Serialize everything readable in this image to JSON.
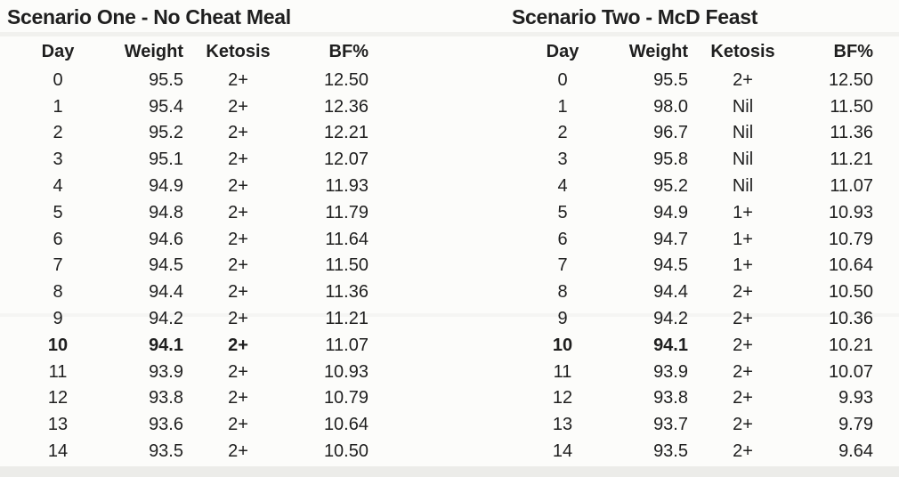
{
  "page": {
    "background_color": "#fcfcfa",
    "text_color": "#1f1f1f"
  },
  "tables": [
    {
      "title": "Scenario One - No Cheat Meal",
      "columns": [
        "Day",
        "Weight",
        "Ketosis",
        "BF%"
      ],
      "rows": [
        {
          "cells": [
            "0",
            "95.5",
            "2+",
            "12.50"
          ],
          "bold": []
        },
        {
          "cells": [
            "1",
            "95.4",
            "2+",
            "12.36"
          ],
          "bold": []
        },
        {
          "cells": [
            "2",
            "95.2",
            "2+",
            "12.21"
          ],
          "bold": []
        },
        {
          "cells": [
            "3",
            "95.1",
            "2+",
            "12.07"
          ],
          "bold": []
        },
        {
          "cells": [
            "4",
            "94.9",
            "2+",
            "11.93"
          ],
          "bold": []
        },
        {
          "cells": [
            "5",
            "94.8",
            "2+",
            "11.79"
          ],
          "bold": []
        },
        {
          "cells": [
            "6",
            "94.6",
            "2+",
            "11.64"
          ],
          "bold": []
        },
        {
          "cells": [
            "7",
            "94.5",
            "2+",
            "11.50"
          ],
          "bold": []
        },
        {
          "cells": [
            "8",
            "94.4",
            "2+",
            "11.36"
          ],
          "bold": []
        },
        {
          "cells": [
            "9",
            "94.2",
            "2+",
            "11.21"
          ],
          "bold": []
        },
        {
          "cells": [
            "10",
            "94.1",
            "2+",
            "11.07"
          ],
          "bold": [
            0,
            1,
            2
          ]
        },
        {
          "cells": [
            "11",
            "93.9",
            "2+",
            "10.93"
          ],
          "bold": []
        },
        {
          "cells": [
            "12",
            "93.8",
            "2+",
            "10.79"
          ],
          "bold": []
        },
        {
          "cells": [
            "13",
            "93.6",
            "2+",
            "10.64"
          ],
          "bold": []
        },
        {
          "cells": [
            "14",
            "93.5",
            "2+",
            "10.50"
          ],
          "bold": []
        }
      ]
    },
    {
      "title": "Scenario Two - McD Feast",
      "columns": [
        "Day",
        "Weight",
        "Ketosis",
        "BF%"
      ],
      "rows": [
        {
          "cells": [
            "0",
            "95.5",
            "2+",
            "12.50"
          ],
          "bold": []
        },
        {
          "cells": [
            "1",
            "98.0",
            "Nil",
            "11.50"
          ],
          "bold": []
        },
        {
          "cells": [
            "2",
            "96.7",
            "Nil",
            "11.36"
          ],
          "bold": []
        },
        {
          "cells": [
            "3",
            "95.8",
            "Nil",
            "11.21"
          ],
          "bold": []
        },
        {
          "cells": [
            "4",
            "95.2",
            "Nil",
            "11.07"
          ],
          "bold": []
        },
        {
          "cells": [
            "5",
            "94.9",
            "1+",
            "10.93"
          ],
          "bold": []
        },
        {
          "cells": [
            "6",
            "94.7",
            "1+",
            "10.79"
          ],
          "bold": []
        },
        {
          "cells": [
            "7",
            "94.5",
            "1+",
            "10.64"
          ],
          "bold": []
        },
        {
          "cells": [
            "8",
            "94.4",
            "2+",
            "10.50"
          ],
          "bold": []
        },
        {
          "cells": [
            "9",
            "94.2",
            "2+",
            "10.36"
          ],
          "bold": []
        },
        {
          "cells": [
            "10",
            "94.1",
            "2+",
            "10.21"
          ],
          "bold": [
            0,
            1
          ]
        },
        {
          "cells": [
            "11",
            "93.9",
            "2+",
            "10.07"
          ],
          "bold": []
        },
        {
          "cells": [
            "12",
            "93.8",
            "2+",
            "9.93"
          ],
          "bold": []
        },
        {
          "cells": [
            "13",
            "93.7",
            "2+",
            "9.79"
          ],
          "bold": []
        },
        {
          "cells": [
            "14",
            "93.5",
            "2+",
            "9.64"
          ],
          "bold": []
        }
      ]
    }
  ]
}
